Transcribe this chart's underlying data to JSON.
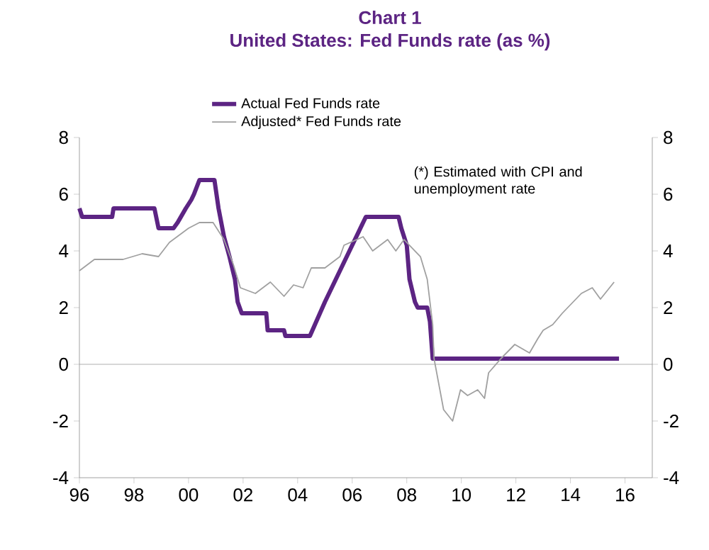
{
  "chart_data": {
    "type": "line",
    "title": "Chart 1",
    "subtitle": "United States: Fed Funds rate (as %)",
    "xlim": [
      1996,
      2017
    ],
    "xticks": [
      {
        "value": 1996,
        "label": "96"
      },
      {
        "value": 1998,
        "label": "98"
      },
      {
        "value": 2000,
        "label": "00"
      },
      {
        "value": 2002,
        "label": "02"
      },
      {
        "value": 2004,
        "label": "04"
      },
      {
        "value": 2006,
        "label": "06"
      },
      {
        "value": 2008,
        "label": "08"
      },
      {
        "value": 2010,
        "label": "10"
      },
      {
        "value": 2012,
        "label": "12"
      },
      {
        "value": 2014,
        "label": "14"
      },
      {
        "value": 2016,
        "label": "16"
      }
    ],
    "ylim": [
      -4,
      8
    ],
    "yticks": [
      -4,
      -2,
      0,
      2,
      4,
      6,
      8
    ],
    "y2lim": [
      -4,
      8
    ],
    "y2ticks": [
      -4,
      -2,
      0,
      2,
      4,
      6,
      8
    ],
    "grid": false,
    "legend": "top",
    "marker": "none",
    "ref_lines": [
      {
        "axis": "y",
        "value": 0,
        "color": "#999999"
      }
    ],
    "annotations": [
      "(*) Estimated with CPI and unemployment rate"
    ],
    "series": [
      {
        "name": "Actual Fed Funds rate",
        "color": "#5c2483",
        "x": [
          1996.0,
          1996.1,
          1997.2,
          1997.25,
          1998.75,
          1998.9,
          1999.45,
          1999.6,
          1999.9,
          2000.1,
          2000.2,
          2000.4,
          2000.95,
          2001.1,
          2001.3,
          2001.5,
          2001.7,
          2001.8,
          2001.95,
          2002.85,
          2002.9,
          2003.5,
          2003.55,
          2004.45,
          2005.0,
          2006.0,
          2006.5,
          2007.7,
          2007.8,
          2008.0,
          2008.1,
          2008.3,
          2008.4,
          2008.75,
          2008.85,
          2008.95,
          2015.78
        ],
        "values": [
          5.5,
          5.2,
          5.2,
          5.5,
          5.5,
          4.8,
          4.8,
          5.0,
          5.5,
          5.8,
          6.0,
          6.5,
          6.5,
          5.5,
          4.5,
          3.8,
          3.0,
          2.2,
          1.8,
          1.8,
          1.2,
          1.2,
          1.0,
          1.0,
          2.2,
          4.2,
          5.2,
          5.2,
          4.8,
          4.2,
          3.0,
          2.2,
          2.0,
          2.0,
          1.5,
          0.2,
          0.2
        ]
      },
      {
        "name": "Adjusted* Fed Funds rate",
        "color": "#a0a0a0",
        "x": [
          1996.0,
          1996.55,
          1997.6,
          1998.3,
          1998.9,
          1999.3,
          2000.0,
          2000.4,
          2000.9,
          2001.3,
          2001.65,
          2001.9,
          2002.45,
          2003.0,
          2003.5,
          2003.85,
          2004.2,
          2004.5,
          2005.0,
          2005.55,
          2005.7,
          2006.4,
          2006.75,
          2007.3,
          2007.6,
          2007.9,
          2008.5,
          2008.75,
          2008.95,
          2009.0,
          2009.35,
          2009.68,
          2009.97,
          2010.23,
          2010.6,
          2010.85,
          2011.0,
          2011.45,
          2011.96,
          2012.5,
          2012.8,
          2013.0,
          2013.35,
          2013.7,
          2014.4,
          2014.8,
          2015.1,
          2015.6
        ],
        "values": [
          3.3,
          3.7,
          3.7,
          3.9,
          3.8,
          4.3,
          4.8,
          5.0,
          5.0,
          4.4,
          3.5,
          2.7,
          2.5,
          2.9,
          2.4,
          2.8,
          2.7,
          3.4,
          3.4,
          3.8,
          4.2,
          4.5,
          4.0,
          4.4,
          4.0,
          4.4,
          3.8,
          3.0,
          1.4,
          0.2,
          -1.6,
          -2.0,
          -0.9,
          -1.1,
          -0.9,
          -1.2,
          -0.3,
          0.2,
          0.7,
          0.4,
          0.9,
          1.2,
          1.4,
          1.8,
          2.5,
          2.7,
          2.3,
          2.9
        ]
      }
    ]
  }
}
